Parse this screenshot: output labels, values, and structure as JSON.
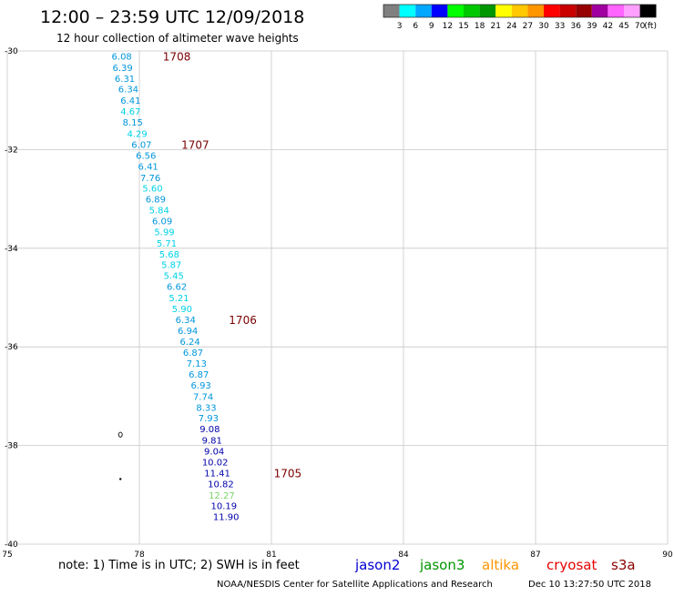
{
  "header": {
    "title": "12:00 – 23:59 UTC 12/09/2018",
    "subtitle": "12 hour collection of altimeter wave heights"
  },
  "color_scale": {
    "labels": [
      "3",
      "6",
      "9",
      "12",
      "15",
      "18",
      "21",
      "24",
      "27",
      "30",
      "33",
      "36",
      "39",
      "42",
      "45",
      "70"
    ],
    "unit": "(ft)",
    "colors": [
      "#808080",
      "#00ffff",
      "#00a8ff",
      "#0000ff",
      "#00ff00",
      "#00c800",
      "#009600",
      "#ffff00",
      "#ffc800",
      "#ff9600",
      "#ff0000",
      "#c80000",
      "#960000",
      "#a000a0",
      "#ff64ff",
      "#ffa0ff",
      "#000000"
    ]
  },
  "map": {
    "lon_range": [
      75,
      90
    ],
    "lat_range": [
      -40,
      -30
    ],
    "x_ticks": [
      "75",
      "78",
      "81",
      "84",
      "87",
      "90"
    ],
    "y_ticks": [
      "-30",
      "-32",
      "-34",
      "-36",
      "-38",
      "-40"
    ],
    "grid_color": "#c8c8c8"
  },
  "chart_data": {
    "type": "scatter",
    "observations": [
      {
        "lon": 77.6,
        "lat": -30.1,
        "value": "6.08",
        "color": "#0096dc"
      },
      {
        "lon": 77.62,
        "lat": -30.33,
        "value": "6.39",
        "color": "#0096dc"
      },
      {
        "lon": 77.67,
        "lat": -30.55,
        "value": "6.31",
        "color": "#0096dc"
      },
      {
        "lon": 77.75,
        "lat": -30.77,
        "value": "6.34",
        "color": "#0096dc"
      },
      {
        "lon": 77.8,
        "lat": -31.0,
        "value": "6.41",
        "color": "#0096dc"
      },
      {
        "lon": 77.8,
        "lat": -31.22,
        "value": "4.67",
        "color": "#00d2e6"
      },
      {
        "lon": 77.85,
        "lat": -31.44,
        "value": "8.15",
        "color": "#0096dc"
      },
      {
        "lon": 77.95,
        "lat": -31.67,
        "value": "4.29",
        "color": "#00d2e6"
      },
      {
        "lon": 78.05,
        "lat": -31.89,
        "value": "6.07",
        "color": "#0096dc"
      },
      {
        "lon": 78.15,
        "lat": -32.11,
        "value": "6.56",
        "color": "#0096dc"
      },
      {
        "lon": 78.2,
        "lat": -32.33,
        "value": "6.41",
        "color": "#0096dc"
      },
      {
        "lon": 78.25,
        "lat": -32.56,
        "value": "7.76",
        "color": "#0096dc"
      },
      {
        "lon": 78.3,
        "lat": -32.78,
        "value": "5.60",
        "color": "#00d2e6"
      },
      {
        "lon": 78.37,
        "lat": -33.0,
        "value": "6.89",
        "color": "#0096dc"
      },
      {
        "lon": 78.45,
        "lat": -33.22,
        "value": "5.84",
        "color": "#00d2e6"
      },
      {
        "lon": 78.52,
        "lat": -33.44,
        "value": "6.09",
        "color": "#0096dc"
      },
      {
        "lon": 78.57,
        "lat": -33.66,
        "value": "5.99",
        "color": "#00d2e6"
      },
      {
        "lon": 78.62,
        "lat": -33.89,
        "value": "5.71",
        "color": "#00d2e6"
      },
      {
        "lon": 78.68,
        "lat": -34.11,
        "value": "5.68",
        "color": "#00d2e6"
      },
      {
        "lon": 78.73,
        "lat": -34.33,
        "value": "5.87",
        "color": "#00d2e6"
      },
      {
        "lon": 78.78,
        "lat": -34.55,
        "value": "5.45",
        "color": "#00d2e6"
      },
      {
        "lon": 78.85,
        "lat": -34.77,
        "value": "6.62",
        "color": "#0096dc"
      },
      {
        "lon": 78.9,
        "lat": -35.0,
        "value": "5.21",
        "color": "#00d2e6"
      },
      {
        "lon": 78.97,
        "lat": -35.22,
        "value": "5.90",
        "color": "#00d2e6"
      },
      {
        "lon": 79.05,
        "lat": -35.44,
        "value": "6.34",
        "color": "#0096dc"
      },
      {
        "lon": 79.1,
        "lat": -35.66,
        "value": "6.94",
        "color": "#0096dc"
      },
      {
        "lon": 79.15,
        "lat": -35.89,
        "value": "6.24",
        "color": "#0096dc"
      },
      {
        "lon": 79.22,
        "lat": -36.11,
        "value": "6.87",
        "color": "#0096dc"
      },
      {
        "lon": 79.3,
        "lat": -36.33,
        "value": "7.13",
        "color": "#0096dc"
      },
      {
        "lon": 79.35,
        "lat": -36.55,
        "value": "6.87",
        "color": "#0096dc"
      },
      {
        "lon": 79.4,
        "lat": -36.77,
        "value": "6.93",
        "color": "#0096dc"
      },
      {
        "lon": 79.45,
        "lat": -37.0,
        "value": "7.74",
        "color": "#0096dc"
      },
      {
        "lon": 79.52,
        "lat": -37.22,
        "value": "8.33",
        "color": "#0096dc"
      },
      {
        "lon": 79.57,
        "lat": -37.44,
        "value": "7.93",
        "color": "#0096dc"
      },
      {
        "lon": 79.6,
        "lat": -37.66,
        "value": "9.08",
        "color": "#0000aa"
      },
      {
        "lon": 79.65,
        "lat": -37.89,
        "value": "9.81",
        "color": "#0000aa"
      },
      {
        "lon": 79.7,
        "lat": -38.11,
        "value": "9.04",
        "color": "#0000aa"
      },
      {
        "lon": 79.72,
        "lat": -38.33,
        "value": "10.02",
        "color": "#0000aa"
      },
      {
        "lon": 79.77,
        "lat": -38.55,
        "value": "11.41",
        "color": "#0000aa"
      },
      {
        "lon": 79.85,
        "lat": -38.77,
        "value": "10.82",
        "color": "#0000aa"
      },
      {
        "lon": 79.87,
        "lat": -39.0,
        "value": "12.27",
        "color": "#7cd46c"
      },
      {
        "lon": 79.92,
        "lat": -39.22,
        "value": "10.19",
        "color": "#0000aa"
      },
      {
        "lon": 79.97,
        "lat": -39.44,
        "value": "11.90",
        "color": "#0000aa"
      }
    ],
    "time_labels": [
      {
        "lon": 78.85,
        "lat": -30.1,
        "text": "1708"
      },
      {
        "lon": 79.27,
        "lat": -31.89,
        "text": "1707"
      },
      {
        "lon": 80.35,
        "lat": -35.44,
        "text": "1706"
      },
      {
        "lon": 81.37,
        "lat": -38.55,
        "text": "1705"
      }
    ],
    "land_marks": [
      {
        "lon": 77.57,
        "lat": -37.78,
        "kind": "ring"
      },
      {
        "lon": 77.57,
        "lat": -38.68,
        "kind": "dot"
      }
    ]
  },
  "note": "note: 1) Time is in UTC; 2) SWH is in feet",
  "satellites": [
    {
      "name": "jason2",
      "color": "#0000d2"
    },
    {
      "name": "jason3",
      "color": "#009600"
    },
    {
      "name": "altika",
      "color": "#ff9600"
    },
    {
      "name": "cryosat",
      "color": "#e60000"
    },
    {
      "name": "s3a",
      "color": "#8c0000"
    }
  ],
  "footer": {
    "credit": "NOAA/NESDIS Center for Satellite Applications and Research",
    "timestamp": "Dec 10 13:27:50 UTC 2018"
  }
}
